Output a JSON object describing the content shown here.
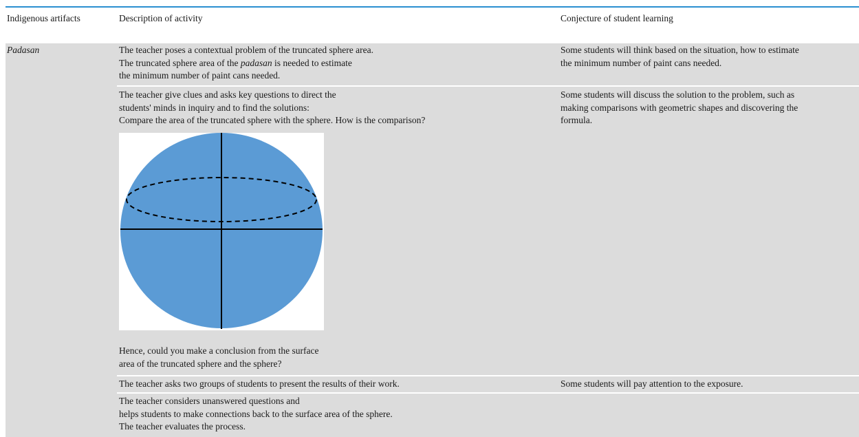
{
  "table": {
    "header": [
      "Indigenous artifacts",
      "Description of activity",
      "Conjecture of student learning"
    ],
    "artifact": "Padasan",
    "rows": [
      {
        "description": [
          "The teacher poses a contextual problem of the truncated sphere area.",
          [
            "The truncated sphere area of the ",
            "padasan",
            " is needed to estimate"
          ],
          "the minimum number of paint cans needed."
        ],
        "conjecture": [
          "Some students will think based on the situation, how to estimate",
          "the minimum number of paint cans needed."
        ]
      },
      {
        "description": [
          "The teacher give clues and asks key questions to direct the",
          "students' minds in inquiry and to find the solutions:",
          "Compare the area of the truncated sphere with the sphere. How is the comparison?"
        ],
        "after_figure": [
          "Hence, could you make a conclusion from the surface",
          "area of the truncated sphere and the sphere?"
        ],
        "conjecture": [
          "Some students will discuss the solution to the problem, such as",
          "making comparisons with geometric shapes and discovering the",
          "formula."
        ]
      },
      {
        "description": [
          "The teacher asks two groups of students to present the results of their work."
        ],
        "conjecture": [
          "Some students will pay attention to the exposure."
        ]
      },
      {
        "description": [
          "The teacher considers unanswered questions and",
          "helps students to make connections back to the surface area of the sphere.",
          "The teacher evaluates the process."
        ]
      }
    ]
  }
}
